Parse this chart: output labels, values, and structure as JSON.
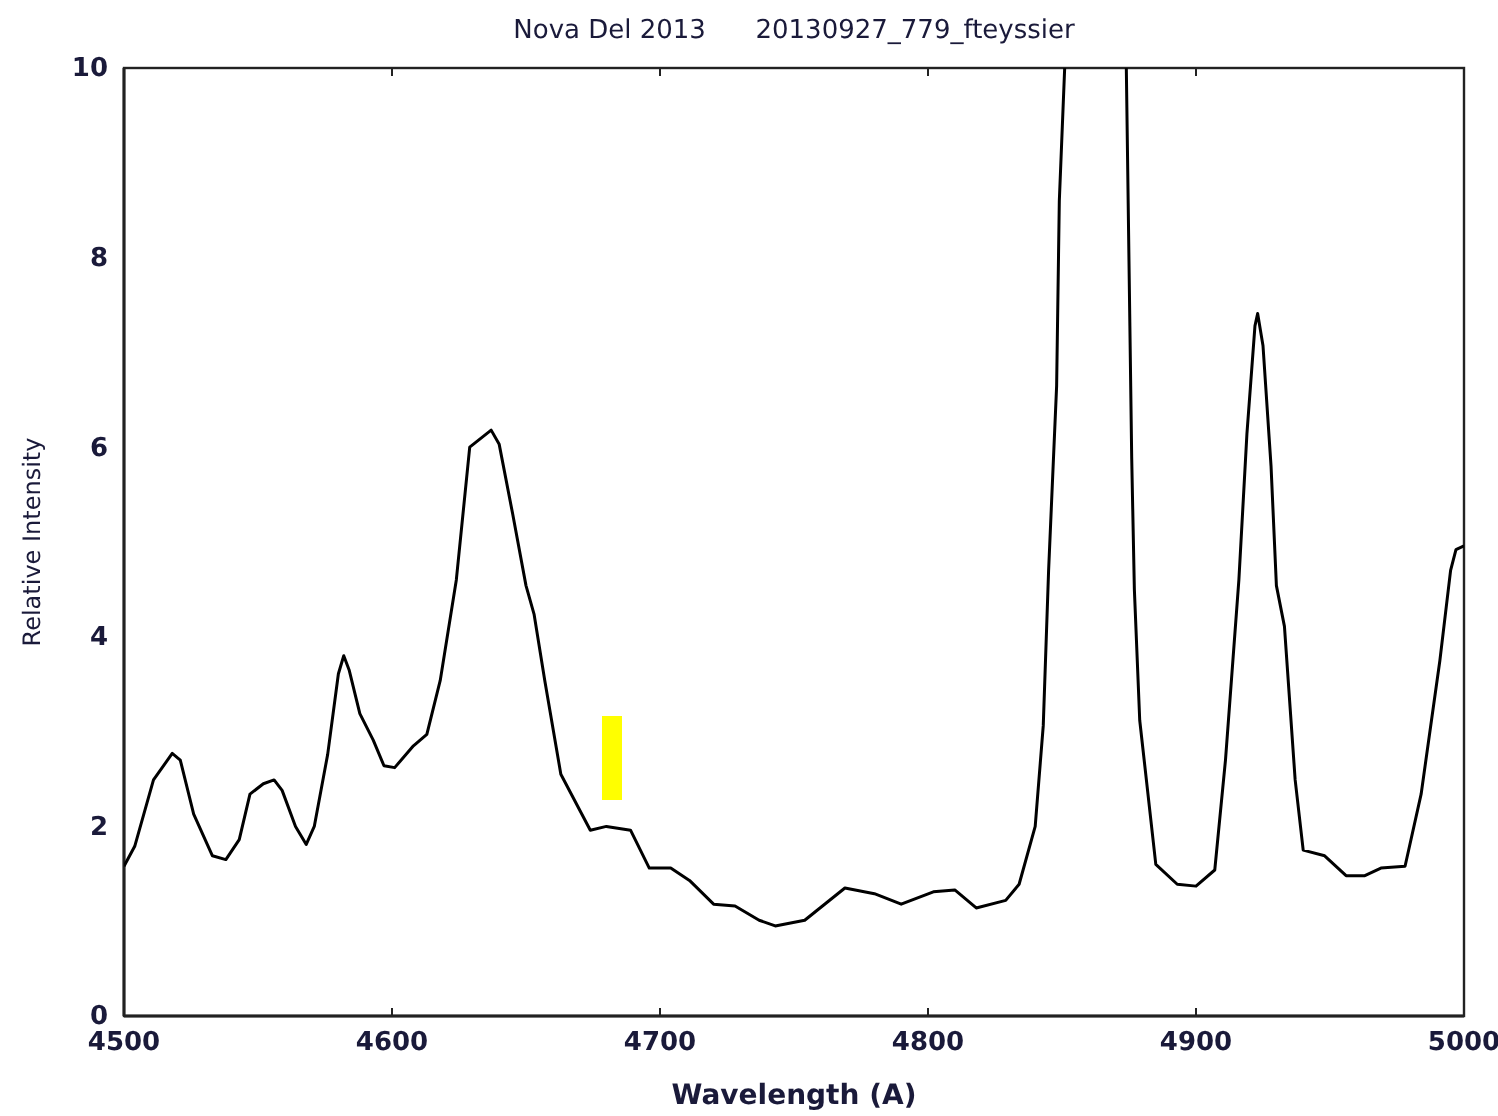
{
  "chart_data": {
    "type": "line",
    "title": "Nova Del 2013      20130927_779_fteyssier",
    "xlabel": "Wavelength (A)",
    "ylabel": "Relative Intensity",
    "xlim": [
      4500,
      5000
    ],
    "xticks": [
      4500,
      4600,
      4700,
      4800,
      4900,
      5000
    ],
    "ylim": [
      0,
      10
    ],
    "yticks": [
      0,
      2,
      4,
      6,
      8,
      10
    ],
    "grid": false,
    "marker": "none",
    "line_style": "solid",
    "series": [
      {
        "color": "#000000",
        "x": [
          4500,
          4504,
          4511,
          4518,
          4521,
          4526,
          4533,
          4538,
          4543,
          4547,
          4552,
          4556,
          4559,
          4564,
          4568,
          4571,
          4576,
          4580,
          4582,
          4584,
          4588,
          4593,
          4597,
          4601,
          4608,
          4613,
          4618,
          4624,
          4629,
          4637,
          4640,
          4645,
          4650,
          4653,
          4657,
          4663,
          4674,
          4680,
          4689,
          4696,
          4704,
          4711,
          4720,
          4728,
          4737,
          4743,
          4754,
          4769,
          4780,
          4790,
          4802,
          4810,
          4818,
          4829,
          4834,
          4840,
          4843,
          4845,
          4848,
          4849,
          4851,
          4862,
          4874,
          4876,
          4877,
          4879,
          4885,
          4893,
          4900,
          4907,
          4911,
          4916,
          4919,
          4922,
          4923,
          4925,
          4928,
          4930,
          4933,
          4937,
          4940,
          4948,
          4956,
          4963,
          4969,
          4978,
          4984,
          4991,
          4995,
          4997,
          5000
        ],
        "values": [
          1.58,
          1.79,
          2.49,
          2.77,
          2.7,
          2.13,
          1.69,
          1.65,
          1.86,
          2.34,
          2.45,
          2.49,
          2.38,
          2.0,
          1.81,
          2.0,
          2.76,
          3.61,
          3.8,
          3.65,
          3.19,
          2.91,
          2.64,
          2.62,
          2.85,
          2.97,
          3.54,
          4.6,
          6.0,
          6.18,
          6.03,
          5.3,
          4.54,
          4.24,
          3.54,
          2.55,
          1.96,
          2.0,
          1.96,
          1.56,
          1.56,
          1.43,
          1.18,
          1.16,
          1.01,
          0.95,
          1.01,
          1.35,
          1.29,
          1.18,
          1.31,
          1.33,
          1.14,
          1.22,
          1.39,
          2.0,
          3.06,
          4.7,
          6.65,
          8.6,
          10,
          null,
          10,
          5.9,
          4.5,
          3.12,
          1.6,
          1.39,
          1.37,
          1.54,
          2.7,
          4.6,
          6.14,
          7.28,
          7.41,
          7.07,
          5.8,
          4.54,
          4.11,
          2.49,
          1.75,
          1.69,
          1.48,
          1.48,
          1.56,
          1.58,
          2.34,
          3.75,
          4.7,
          4.92,
          4.96
        ]
      }
    ]
  }
}
